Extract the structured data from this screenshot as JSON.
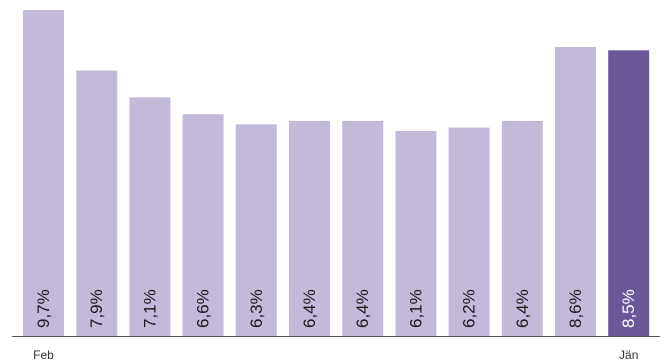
{
  "chart_data": {
    "type": "bar",
    "categories": [
      "Feb",
      "",
      "",
      "",
      "",
      "",
      "",
      "",
      "",
      "",
      "",
      "Jän"
    ],
    "values": [
      9.7,
      7.9,
      7.1,
      6.6,
      6.3,
      6.4,
      6.4,
      6.1,
      6.2,
      6.4,
      8.6,
      8.5
    ],
    "data_labels": [
      "9,7%",
      "7,9%",
      "7,1%",
      "6,6%",
      "6,3%",
      "6,4%",
      "6,4%",
      "6,1%",
      "6,2%",
      "6,4%",
      "8,6%",
      "8,5%"
    ],
    "title": "",
    "xlabel": "",
    "ylabel": "",
    "ylim": [
      0,
      9.7
    ],
    "grid": false,
    "legend": "none",
    "highlight_index": 11,
    "colors": {
      "bar": "#c3bad9",
      "highlight": "#6a5898",
      "label_dark": "#1a1a1a",
      "label_light": "#ffffff",
      "axis": "#555555",
      "tick_label": "#333333"
    }
  }
}
